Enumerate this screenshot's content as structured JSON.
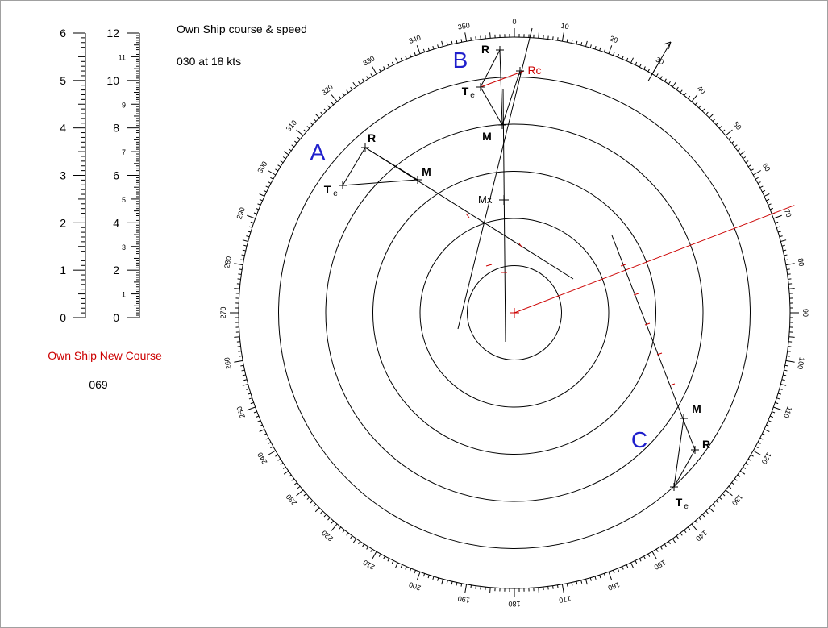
{
  "header": {
    "course_speed_label": "Own Ship course & speed",
    "course_speed_value": "030 at 18 kts"
  },
  "new_course": {
    "label": "Own Ship New Course",
    "value": "069"
  },
  "scales": {
    "range": {
      "min": 0,
      "max": 6,
      "labels": [
        "0",
        "1",
        "2",
        "3",
        "4",
        "5",
        "6"
      ]
    },
    "speed": {
      "min": 0,
      "max": 12,
      "major_labels": [
        "0",
        "2",
        "4",
        "6",
        "8",
        "10",
        "12"
      ],
      "minor_labels": [
        "1",
        "3",
        "5",
        "7",
        "9",
        "11"
      ]
    }
  },
  "plot": {
    "rings_nm": [
      1,
      2,
      3,
      4,
      5
    ],
    "bearing_labels": [
      "0",
      "10",
      "20",
      "30",
      "40",
      "50",
      "60",
      "70",
      "80",
      "90",
      "100",
      "110",
      "120",
      "130",
      "140",
      "150",
      "160",
      "170",
      "180",
      "190",
      "200",
      "210",
      "220",
      "230",
      "240",
      "250",
      "260",
      "270",
      "280",
      "290",
      "300",
      "310",
      "320",
      "330",
      "340",
      "350"
    ],
    "own_ship_course_deg": 30,
    "own_ship_new_course_deg": 69,
    "mx_label": "Mx",
    "rc_label": "Rc"
  },
  "contacts": [
    {
      "id": "A",
      "labels": {
        "r": "R",
        "m": "M",
        "t": "T",
        "t_sub": "e"
      }
    },
    {
      "id": "B",
      "labels": {
        "r": "R",
        "m": "M",
        "t": "T",
        "t_sub": "e"
      }
    },
    {
      "id": "C",
      "labels": {
        "r": "R",
        "m": "M",
        "t": "T",
        "t_sub": "e"
      }
    }
  ],
  "colors": {
    "ink": "#000000",
    "accent_red": "#cc0000",
    "contact_label_blue": "#1f1fcc",
    "frame": "#a0a0a0"
  }
}
